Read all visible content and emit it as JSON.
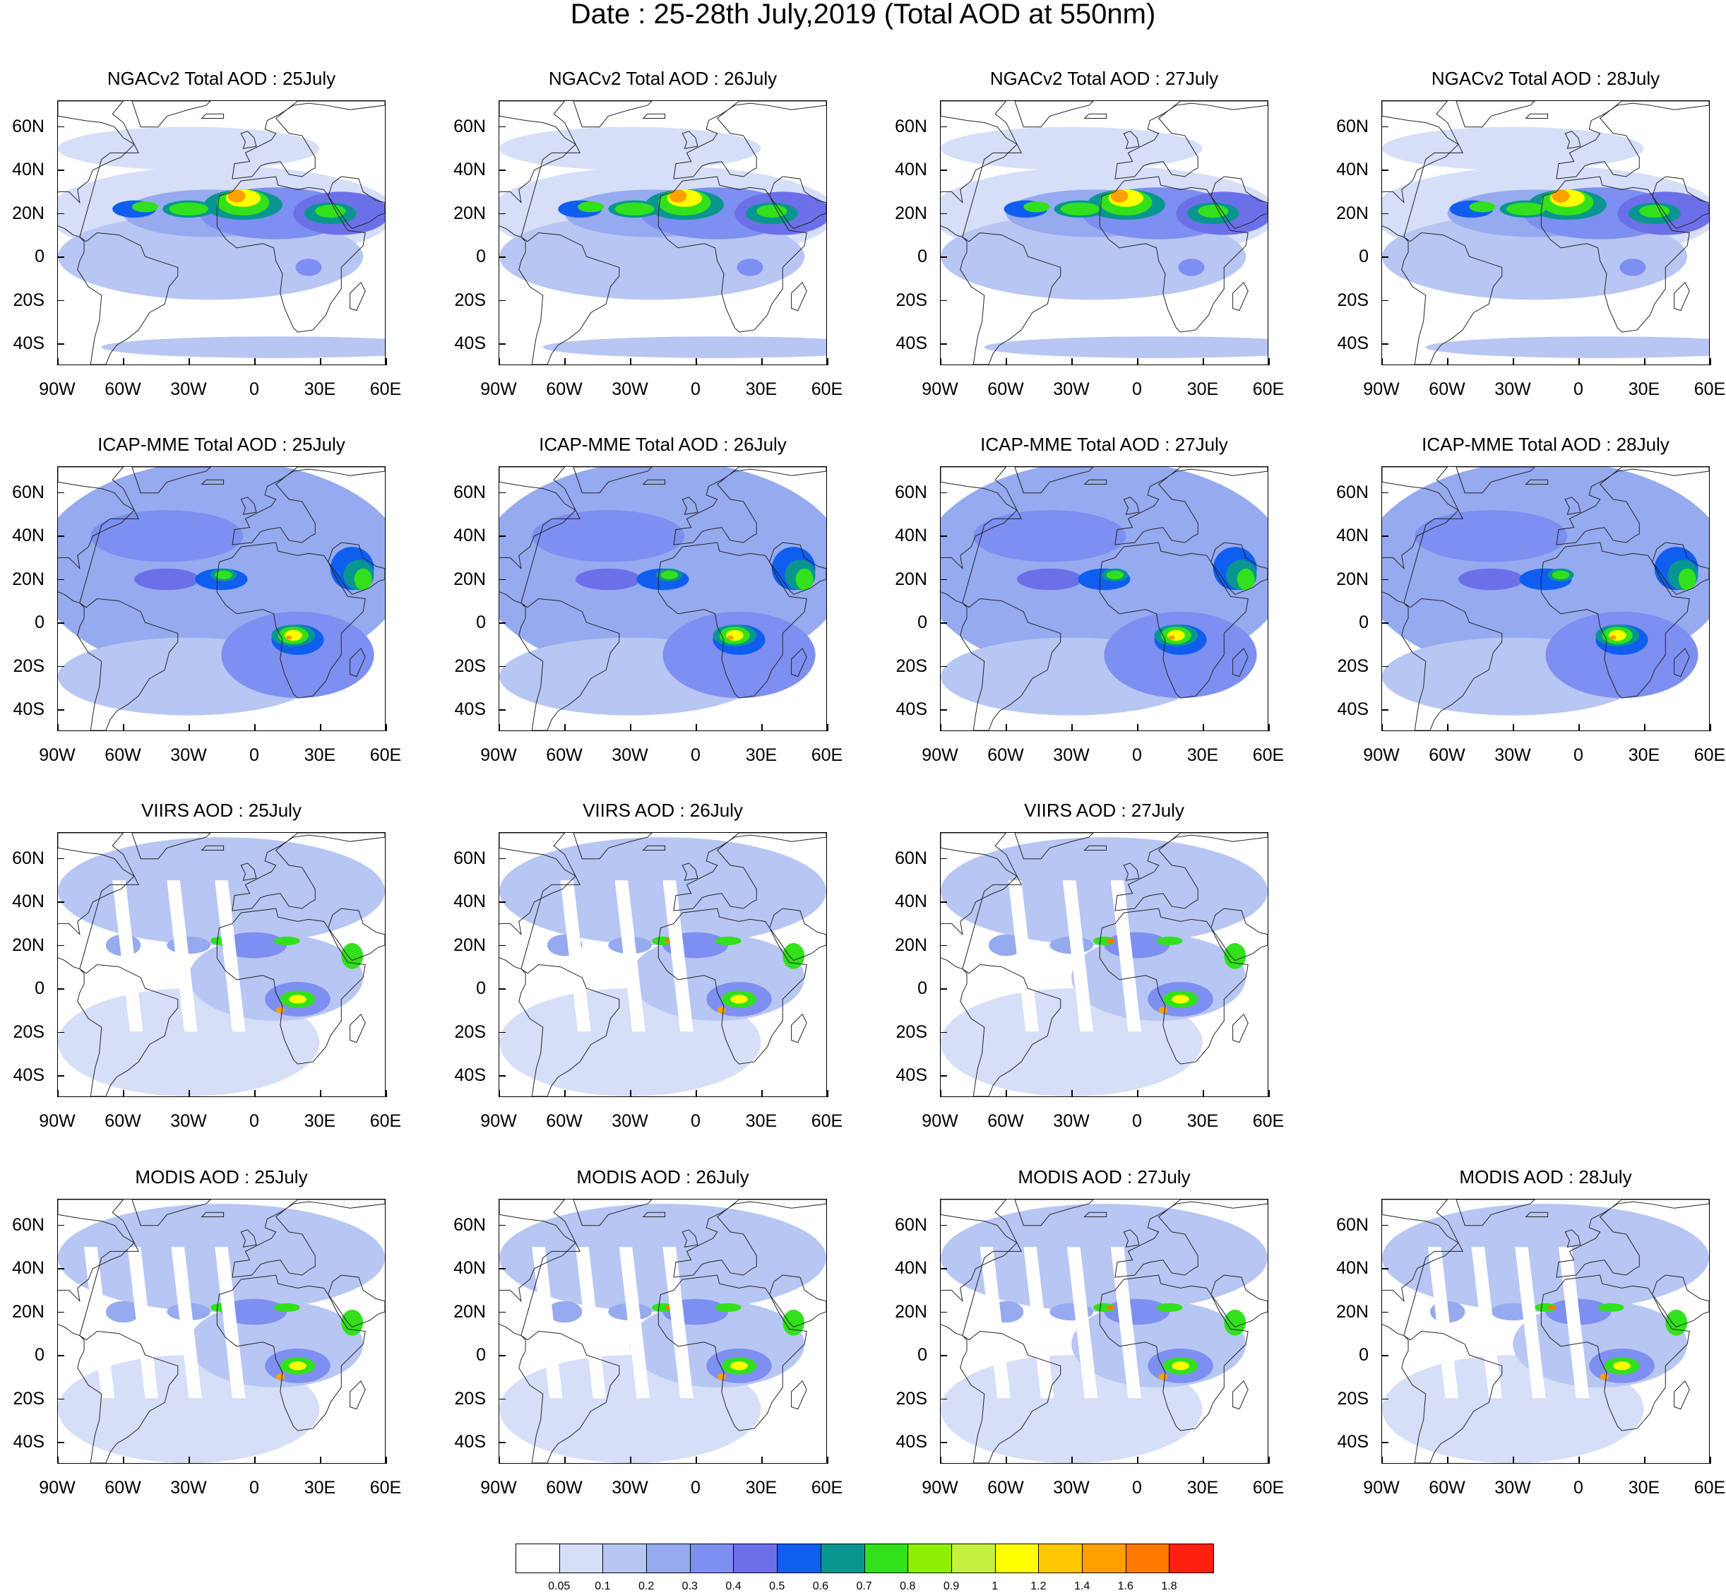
{
  "title": "Date : 25-28th July,2019 (Total AOD at 550nm)",
  "axes": {
    "lat_labels": [
      "60N",
      "40N",
      "20N",
      "0",
      "20S",
      "40S"
    ],
    "lon_labels": [
      "90W",
      "60W",
      "30W",
      "0",
      "30E",
      "60E"
    ]
  },
  "rows": [
    {
      "id": "ngac",
      "panels": [
        {
          "title": "NGACv2 Total AOD : 25July"
        },
        {
          "title": "NGACv2 Total AOD : 26July"
        },
        {
          "title": "NGACv2 Total AOD : 27July"
        },
        {
          "title": "NGACv2 Total AOD : 28July"
        }
      ]
    },
    {
      "id": "icap",
      "panels": [
        {
          "title": "ICAP-MME Total AOD : 25July"
        },
        {
          "title": "ICAP-MME Total AOD : 26July"
        },
        {
          "title": "ICAP-MME Total AOD : 27July"
        },
        {
          "title": "ICAP-MME Total AOD : 28July"
        }
      ]
    },
    {
      "id": "viirs",
      "panels": [
        {
          "title": "VIIRS AOD : 25July"
        },
        {
          "title": "VIIRS AOD : 26July"
        },
        {
          "title": "VIIRS AOD : 27July"
        }
      ]
    },
    {
      "id": "modis",
      "panels": [
        {
          "title": "MODIS AOD : 25July"
        },
        {
          "title": "MODIS AOD : 26July"
        },
        {
          "title": "MODIS AOD : 27July"
        },
        {
          "title": "MODIS AOD : 28July"
        }
      ]
    }
  ],
  "colorbar": {
    "colors": [
      "#ffffff",
      "#d6def8",
      "#b8c6f4",
      "#96aaf0",
      "#7d8ff0",
      "#6c70e8",
      "#0f5ef0",
      "#0a9690",
      "#33e01c",
      "#8cf000",
      "#c4f040",
      "#ffff00",
      "#ffc800",
      "#ffa000",
      "#ff7800",
      "#ff2010"
    ],
    "labels": [
      "0.05",
      "0.1",
      "0.2",
      "0.3",
      "0.4",
      "0.5",
      "0.6",
      "0.7",
      "0.8",
      "0.9",
      "1",
      "1.2",
      "1.4",
      "1.6",
      "1.8"
    ]
  }
}
